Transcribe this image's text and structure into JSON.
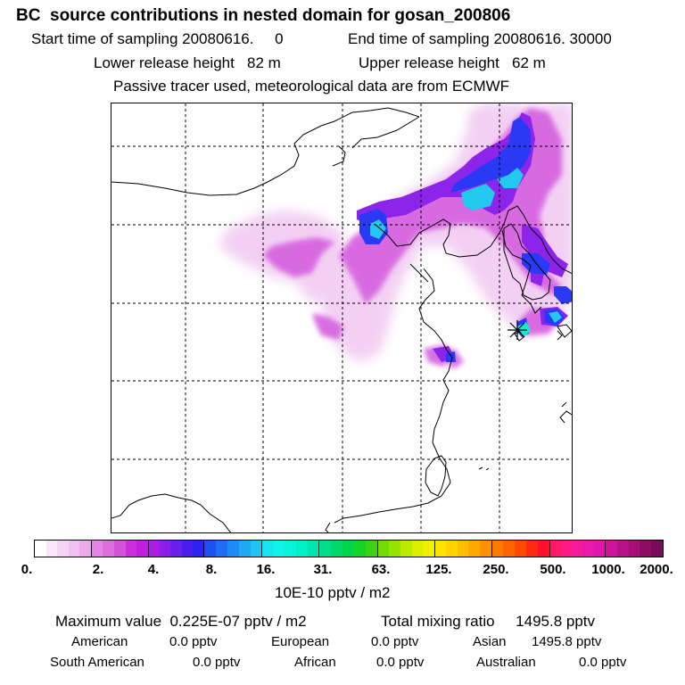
{
  "header": {
    "title": "BC  source contributions in nested domain for gosan_200806",
    "start_time_label": "Start time of sampling 20080616.     0",
    "end_time_label": "End time of sampling 20080616. 30000",
    "lower_release_label": "Lower release height   82 m",
    "upper_release_label": "Upper release height   62 m",
    "tracer_info": "Passive tracer used, meteorological data are from ECMWF"
  },
  "colorbar": {
    "tick_labels": [
      "0.",
      "2.",
      "4.",
      "8.",
      "16.",
      "31.",
      "63.",
      "125.",
      "250.",
      "500.",
      "1000.",
      "2000."
    ],
    "unit": "10E-10 pptv / m2",
    "segments": [
      [
        "#ffffff",
        "#fbe5fb",
        "#f6d2f6",
        "#f1bff1",
        "#ecaaec"
      ],
      [
        "#e385e5",
        "#dc6ddf",
        "#d551dc",
        "#cb2edc",
        "#c21ee0"
      ],
      [
        "#aa1ee4",
        "#8a1ee8",
        "#6a1eec",
        "#4a1ef0",
        "#2e23f3"
      ],
      [
        "#1e50f3",
        "#1e6ef3",
        "#1e8cf3",
        "#1eaaf3",
        "#1ec5f3"
      ],
      [
        "#18e3f3",
        "#10f3ea",
        "#08f3da",
        "#00f0c8",
        "#00e6ae"
      ],
      [
        "#00de8c",
        "#00d86a",
        "#00d448",
        "#14d428",
        "#3cd410"
      ],
      [
        "#70dc00",
        "#96e400",
        "#bcea00",
        "#dcef00",
        "#f0f000"
      ],
      [
        "#ffe400",
        "#ffd200",
        "#ffbe00",
        "#ffa800",
        "#ff9000"
      ],
      [
        "#ff7a00",
        "#ff6200",
        "#ff4a00",
        "#ff2a10",
        "#ff1030"
      ],
      [
        "#ff1a6a",
        "#ff1a86",
        "#f71aa0",
        "#ea18aa",
        "#df16b0"
      ],
      [
        "#cc149c",
        "#b81288",
        "#a41076",
        "#8e0e66",
        "#780c58"
      ]
    ]
  },
  "footer": {
    "maximum_value_label": "Maximum value  0.225E-07 pptv / m2",
    "total_mixing_ratio_label": "Total mixing ratio     1495.8 pptv",
    "contributions": [
      {
        "name": "American",
        "value": "0.0 pptv"
      },
      {
        "name": "European",
        "value": "0.0 pptv"
      },
      {
        "name": "Asian",
        "value": "1495.8 pptv"
      },
      {
        "name": "South American",
        "value": "0.0 pptv"
      },
      {
        "name": "African",
        "value": "0.0 pptv"
      },
      {
        "name": "Australian",
        "value": "0.0 pptv"
      }
    ]
  },
  "map": {
    "receptor_marker": "star-marker",
    "gridline_style": "dashed"
  }
}
